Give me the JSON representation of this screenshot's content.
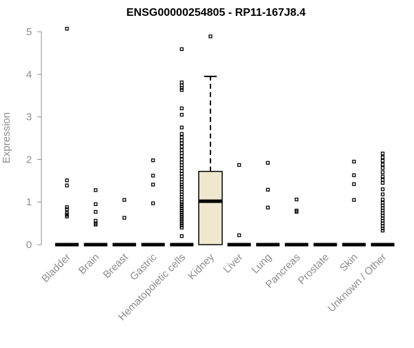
{
  "chart_data": {
    "type": "box",
    "title": "ENSG00000254805 - RP11-167J8.4",
    "xlabel": "",
    "ylabel": "Expression",
    "ylim": [
      0,
      5
    ],
    "yticks": [
      0,
      1,
      2,
      3,
      4,
      5
    ],
    "grid": false,
    "box_fill_color": "#efe8cf",
    "categories": [
      {
        "name": "Bladder",
        "median": 0,
        "q1": 0,
        "q3": 0,
        "whisker_low": 0,
        "whisker_high": 0,
        "outliers": [
          5.07,
          1.51,
          1.39,
          0.88,
          0.83,
          0.74,
          0.7,
          0.66
        ]
      },
      {
        "name": "Brain",
        "median": 0,
        "q1": 0,
        "q3": 0,
        "whisker_low": 0,
        "whisker_high": 0,
        "outliers": [
          1.28,
          0.95,
          0.77,
          0.56,
          0.5,
          0.47
        ]
      },
      {
        "name": "Breast",
        "median": 0,
        "q1": 0,
        "q3": 0,
        "whisker_low": 0,
        "whisker_high": 0,
        "outliers": [
          1.05,
          0.63
        ]
      },
      {
        "name": "Gastric",
        "median": 0,
        "q1": 0,
        "q3": 0,
        "whisker_low": 0,
        "whisker_high": 0,
        "outliers": [
          1.98,
          1.62,
          1.41,
          0.97
        ]
      },
      {
        "name": "Hematopoietic cells",
        "median": 0,
        "q1": 0,
        "q3": 0,
        "whisker_low": 0,
        "whisker_high": 0,
        "outliers": [
          4.59,
          3.81,
          3.74,
          3.68,
          3.63,
          3.2,
          3.05,
          2.75,
          2.6,
          2.52,
          2.45,
          2.38,
          2.3,
          2.22,
          2.15,
          2.08,
          2.0,
          1.93,
          1.87,
          1.8,
          1.73,
          1.66,
          1.6,
          1.53,
          1.47,
          1.41,
          1.36,
          1.3,
          1.24,
          1.18,
          1.12,
          1.06,
          1.0,
          0.95,
          0.9,
          0.85,
          0.8,
          0.75,
          0.7,
          0.65,
          0.6,
          0.55,
          0.5,
          0.45,
          0.4,
          0.2
        ]
      },
      {
        "name": "Kidney",
        "median": 1.02,
        "q1": 0,
        "q3": 1.72,
        "whisker_low": 0,
        "whisker_high": 3.95,
        "outliers": [
          4.89
        ]
      },
      {
        "name": "Liver",
        "median": 0,
        "q1": 0,
        "q3": 0,
        "whisker_low": 0,
        "whisker_high": 0,
        "outliers": [
          1.87,
          0.22
        ]
      },
      {
        "name": "Lung",
        "median": 0,
        "q1": 0,
        "q3": 0,
        "whisker_low": 0,
        "whisker_high": 0,
        "outliers": [
          1.92,
          1.29,
          0.87
        ]
      },
      {
        "name": "Pancreas",
        "median": 0,
        "q1": 0,
        "q3": 0,
        "whisker_low": 0,
        "whisker_high": 0,
        "outliers": [
          1.06,
          0.8,
          0.77
        ]
      },
      {
        "name": "Prostate",
        "median": 0,
        "q1": 0,
        "q3": 0,
        "whisker_low": 0,
        "whisker_high": 0,
        "outliers": []
      },
      {
        "name": "Skin",
        "median": 0,
        "q1": 0,
        "q3": 0,
        "whisker_low": 0,
        "whisker_high": 0,
        "outliers": [
          1.95,
          1.63,
          1.42,
          1.05
        ]
      },
      {
        "name": "Unknown / Other",
        "median": 0,
        "q1": 0,
        "q3": 0,
        "whisker_low": 0,
        "whisker_high": 0,
        "outliers": [
          2.14,
          2.05,
          1.97,
          1.88,
          1.8,
          1.7,
          1.6,
          1.52,
          1.45,
          1.3,
          1.18,
          1.06,
          0.98,
          0.92,
          0.86,
          0.8,
          0.74,
          0.68,
          0.62,
          0.56,
          0.5,
          0.44,
          0.38,
          0.33
        ]
      }
    ]
  }
}
